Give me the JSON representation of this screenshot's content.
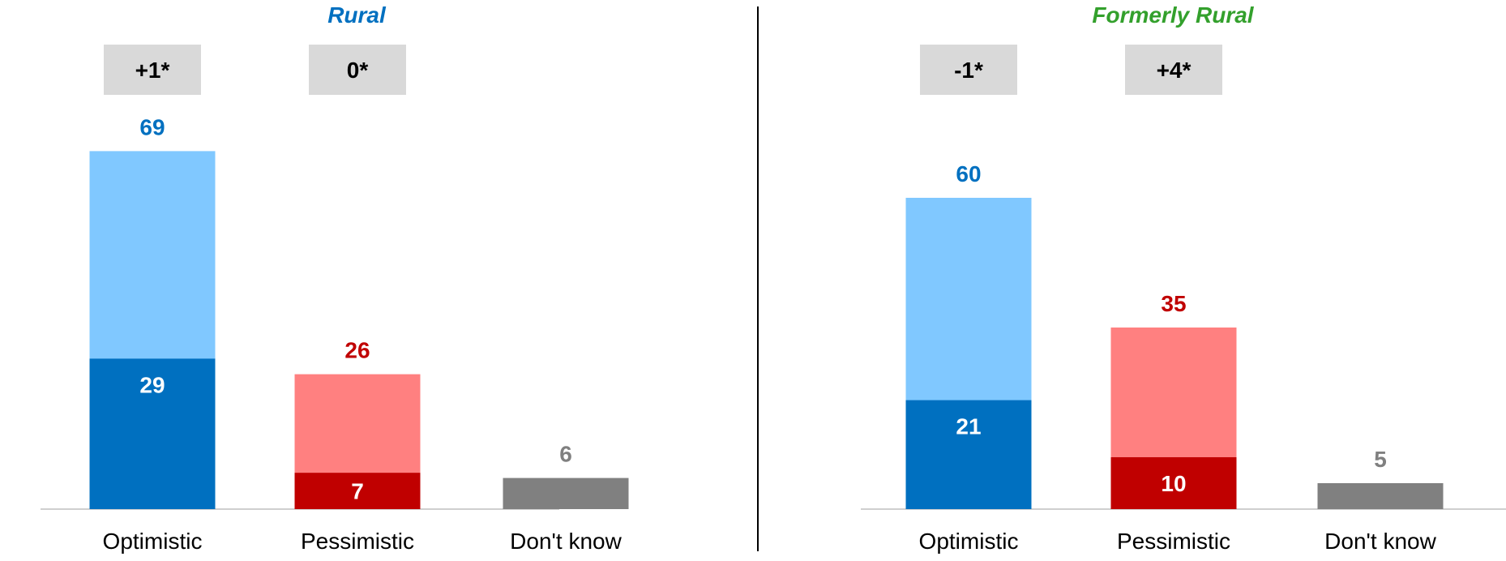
{
  "colors": {
    "optimistic_total": "#80C8FF",
    "optimistic_strong": "#0070C0",
    "pessimistic_total": "#FF8080",
    "pessimistic_strong": "#C00000",
    "dont_know": "#808080",
    "rural_title": "#0070C0",
    "formerly_rural_title": "#33A02C",
    "change_box": "#D9D9D9",
    "axis": "#BFBFBF",
    "divider": "#000000"
  },
  "chart_data": [
    {
      "type": "bar",
      "title": "Rural",
      "categories": [
        "Optimistic",
        "Pessimistic",
        "Don't know"
      ],
      "total_values": [
        69,
        26,
        6
      ],
      "strong_values": [
        29,
        7,
        null
      ],
      "changes": [
        "+1*",
        "0*"
      ],
      "ylim": [
        0,
        75
      ],
      "xlabel": "",
      "ylabel": "",
      "grid": false,
      "legend": "none"
    },
    {
      "type": "bar",
      "title": "Formerly Rural",
      "categories": [
        "Optimistic",
        "Pessimistic",
        "Don't know"
      ],
      "total_values": [
        60,
        35,
        5
      ],
      "strong_values": [
        21,
        10,
        null
      ],
      "changes": [
        "-1*",
        "+4*"
      ],
      "ylim": [
        0,
        75
      ],
      "xlabel": "",
      "ylabel": "",
      "grid": false,
      "legend": "none"
    }
  ]
}
